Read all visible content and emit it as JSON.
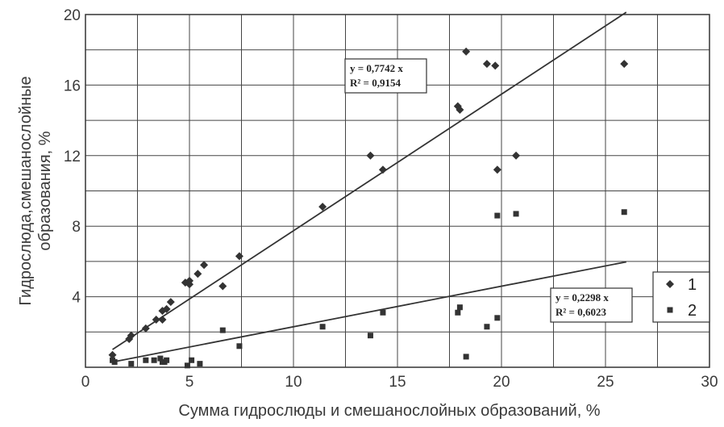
{
  "chart_data": {
    "type": "scatter",
    "xlabel": "Сумма гидрослюды и смешанослойных образований, %",
    "ylabel_lines": [
      "Гидрослюда,смешанослойные",
      "образования, %"
    ],
    "xlim": [
      0,
      30
    ],
    "ylim": [
      0,
      20
    ],
    "x_ticks": [
      0,
      5,
      10,
      15,
      20,
      25,
      30
    ],
    "x_tick_labels": [
      "0",
      "5",
      "10",
      "15",
      "20",
      "25",
      "30"
    ],
    "y_ticks": [
      4,
      8,
      12,
      16,
      20
    ],
    "y_tick_labels": [
      "4",
      "8",
      "12",
      "16",
      "20"
    ],
    "grid": true,
    "legend_position": "right",
    "series": [
      {
        "name": "1",
        "marker": "diamond",
        "trend_slope": 0.7742,
        "trend_x": [
          1.3,
          26
        ],
        "eq_lines": [
          "y = 0,7742 x",
          "R² = 0,9154"
        ],
        "points": [
          [
            1.3,
            0.7
          ],
          [
            2.1,
            1.6
          ],
          [
            2.2,
            1.8
          ],
          [
            2.9,
            2.2
          ],
          [
            3.4,
            2.7
          ],
          [
            3.7,
            2.7
          ],
          [
            3.7,
            3.2
          ],
          [
            3.9,
            3.3
          ],
          [
            4.1,
            3.7
          ],
          [
            4.8,
            4.8
          ],
          [
            5.0,
            4.7
          ],
          [
            5.0,
            4.9
          ],
          [
            5.4,
            5.3
          ],
          [
            5.7,
            5.8
          ],
          [
            6.6,
            4.6
          ],
          [
            7.4,
            6.3
          ],
          [
            11.4,
            9.1
          ],
          [
            13.7,
            12.0
          ],
          [
            14.3,
            11.2
          ],
          [
            17.9,
            14.8
          ],
          [
            18.0,
            14.6
          ],
          [
            18.3,
            17.9
          ],
          [
            19.3,
            17.2
          ],
          [
            19.7,
            17.1
          ],
          [
            19.8,
            11.2
          ],
          [
            20.7,
            12.0
          ],
          [
            25.9,
            17.2
          ]
        ]
      },
      {
        "name": "2",
        "marker": "square",
        "trend_slope": 0.2298,
        "trend_x": [
          1.3,
          26
        ],
        "eq_lines": [
          "y = 0,2298 x",
          "R² = 0,6023"
        ],
        "points": [
          [
            1.3,
            0.4
          ],
          [
            1.4,
            0.3
          ],
          [
            2.2,
            0.2
          ],
          [
            2.9,
            0.4
          ],
          [
            3.3,
            0.4
          ],
          [
            3.6,
            0.5
          ],
          [
            3.8,
            0.3
          ],
          [
            3.9,
            0.4
          ],
          [
            3.7,
            0.3
          ],
          [
            4.9,
            0.1
          ],
          [
            5.1,
            0.4
          ],
          [
            5.5,
            0.2
          ],
          [
            6.6,
            2.1
          ],
          [
            7.4,
            1.2
          ],
          [
            11.4,
            2.3
          ],
          [
            13.7,
            1.8
          ],
          [
            14.3,
            3.1
          ],
          [
            17.9,
            3.1
          ],
          [
            18.0,
            3.4
          ],
          [
            18.3,
            0.6
          ],
          [
            19.3,
            2.3
          ],
          [
            19.8,
            2.8
          ],
          [
            19.8,
            8.6
          ],
          [
            20.7,
            8.7
          ],
          [
            25.9,
            8.8
          ]
        ]
      }
    ]
  }
}
